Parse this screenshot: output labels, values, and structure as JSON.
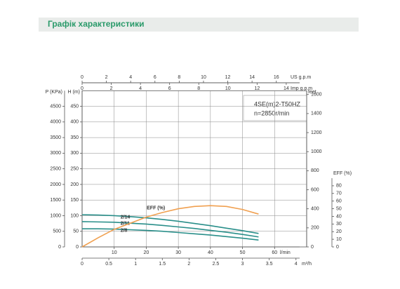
{
  "header": {
    "title": "Графік характеристики"
  },
  "chart_data": {
    "type": "line",
    "title_lines": [
      "4SE(m)2-T50HZ",
      "n=2850r/min"
    ],
    "x": [
      0,
      5,
      10,
      15,
      20,
      25,
      30,
      35,
      40,
      45,
      50,
      55
    ],
    "x_label": "l/min",
    "xlim": [
      0,
      70
    ],
    "xticks": [
      10,
      20,
      30,
      40,
      50,
      60
    ],
    "y_label": "H (m)",
    "ylim": [
      0,
      500
    ],
    "yticks": [
      0,
      50,
      100,
      150,
      200,
      250,
      300,
      350,
      400,
      450
    ],
    "grid": true,
    "pressure_axis": {
      "label": "P (KPa)",
      "lim": [
        0,
        5000
      ],
      "ticks": [
        0,
        500,
        1000,
        1500,
        2000,
        2500,
        3000,
        3500,
        4000,
        4500
      ]
    },
    "feet_axis": {
      "label": "feet",
      "lim": [
        0,
        1640
      ],
      "ticks": [
        0,
        200,
        400,
        600,
        800,
        1000,
        1200,
        1400,
        1600
      ]
    },
    "eff_axis": {
      "label": "EFF (%)",
      "lim": [
        0,
        90
      ],
      "ticks": [
        0,
        10,
        20,
        30,
        40,
        50,
        60,
        70,
        80
      ]
    },
    "m3h_axis": {
      "label": "m³/h",
      "lim": [
        0,
        4.2
      ],
      "ticks": [
        0,
        0.5,
        1,
        1.5,
        2,
        2.5,
        3,
        3.5,
        4
      ]
    },
    "us_gpm_axis": {
      "label": "US g.p.m",
      "lim": [
        0,
        18.5
      ],
      "ticks": [
        0,
        2,
        4,
        6,
        8,
        10,
        12,
        14,
        16
      ]
    },
    "imp_gpm_axis": {
      "label": "Imp g.p.m",
      "lim": [
        0,
        15.4
      ],
      "ticks": [
        0,
        2,
        4,
        6,
        8,
        10,
        12,
        14
      ]
    },
    "series": [
      {
        "name": "2/14",
        "color": "#2a8f8a",
        "values": [
          103,
          102,
          100,
          97,
          93,
          88,
          82,
          75,
          68,
          60,
          52,
          43
        ]
      },
      {
        "name": "2/11",
        "color": "#2a8f8a",
        "values": [
          81,
          80,
          79,
          76,
          73,
          69,
          64,
          59,
          53,
          47,
          40,
          32
        ]
      },
      {
        "name": "2/8",
        "color": "#2a8f8a",
        "values": [
          58,
          58,
          57,
          55,
          53,
          50,
          46,
          42,
          38,
          33,
          28,
          22
        ]
      },
      {
        "name": "EFF (%)",
        "color": "#f0a050",
        "axis": "eff",
        "values": [
          0,
          12,
          23,
          31,
          39,
          45,
          50,
          53,
          54,
          53,
          49,
          43
        ]
      }
    ]
  }
}
